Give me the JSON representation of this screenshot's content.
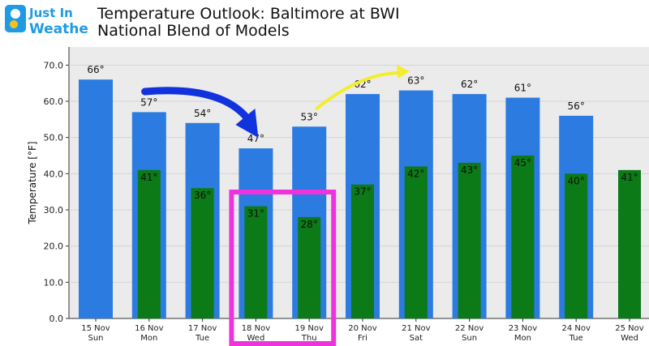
{
  "header": {
    "logo_line1": "Just In",
    "logo_line2": "Weather",
    "title": "Temperature Outlook: Baltimore at BWI",
    "subtitle": "National Blend of Models"
  },
  "colors": {
    "high_bar": "#2b7be0",
    "low_bar": "#0b7a17",
    "highlight_box": "#ee33dd",
    "arrow_down": "#1133dd",
    "arrow_up": "#f2ee2e",
    "plot_bg": "#ebebeb"
  },
  "chart_data": {
    "type": "bar",
    "ylabel": "Temperature [°F]",
    "ylim": [
      0,
      75
    ],
    "yticks": [
      "0.0",
      "10.0",
      "20.0",
      "30.0",
      "40.0",
      "50.0",
      "60.0",
      "70.0"
    ],
    "grid": true,
    "categories": [
      {
        "date": "15 Nov",
        "day": "Sun"
      },
      {
        "date": "16 Nov",
        "day": "Mon"
      },
      {
        "date": "17 Nov",
        "day": "Tue"
      },
      {
        "date": "18 Nov",
        "day": "Wed"
      },
      {
        "date": "19 Nov",
        "day": "Thu"
      },
      {
        "date": "20 Nov",
        "day": "Fri"
      },
      {
        "date": "21 Nov",
        "day": "Sat"
      },
      {
        "date": "22 Nov",
        "day": "Sun"
      },
      {
        "date": "23 Nov",
        "day": "Mon"
      },
      {
        "date": "24 Nov",
        "day": "Tue"
      },
      {
        "date": "25 Nov",
        "day": "Wed"
      }
    ],
    "series": [
      {
        "values": [
          66,
          57,
          54,
          47,
          53,
          62,
          63,
          62,
          61,
          56,
          null
        ],
        "labels": [
          "66°",
          "57°",
          "54°",
          "47°",
          "53°",
          "62°",
          "63°",
          "62°",
          "61°",
          "56°",
          ""
        ]
      },
      {
        "values": [
          null,
          41,
          36,
          31,
          28,
          37,
          42,
          43,
          45,
          40,
          41
        ],
        "labels": [
          "",
          "41°",
          "36°",
          "31°",
          "28°",
          "37°",
          "42°",
          "43°",
          "45°",
          "40°",
          "41°"
        ]
      }
    ],
    "annotations": {
      "highlight": {
        "from_category": "18 Nov",
        "to_category": "19 Nov"
      },
      "arrows": [
        {
          "color": "blue",
          "direction": "down",
          "from_category": "17 Nov",
          "to_category": "18 Nov"
        },
        {
          "color": "yellow",
          "direction": "up",
          "from_category": "19 Nov",
          "to_category": "21 Nov"
        }
      ]
    }
  }
}
